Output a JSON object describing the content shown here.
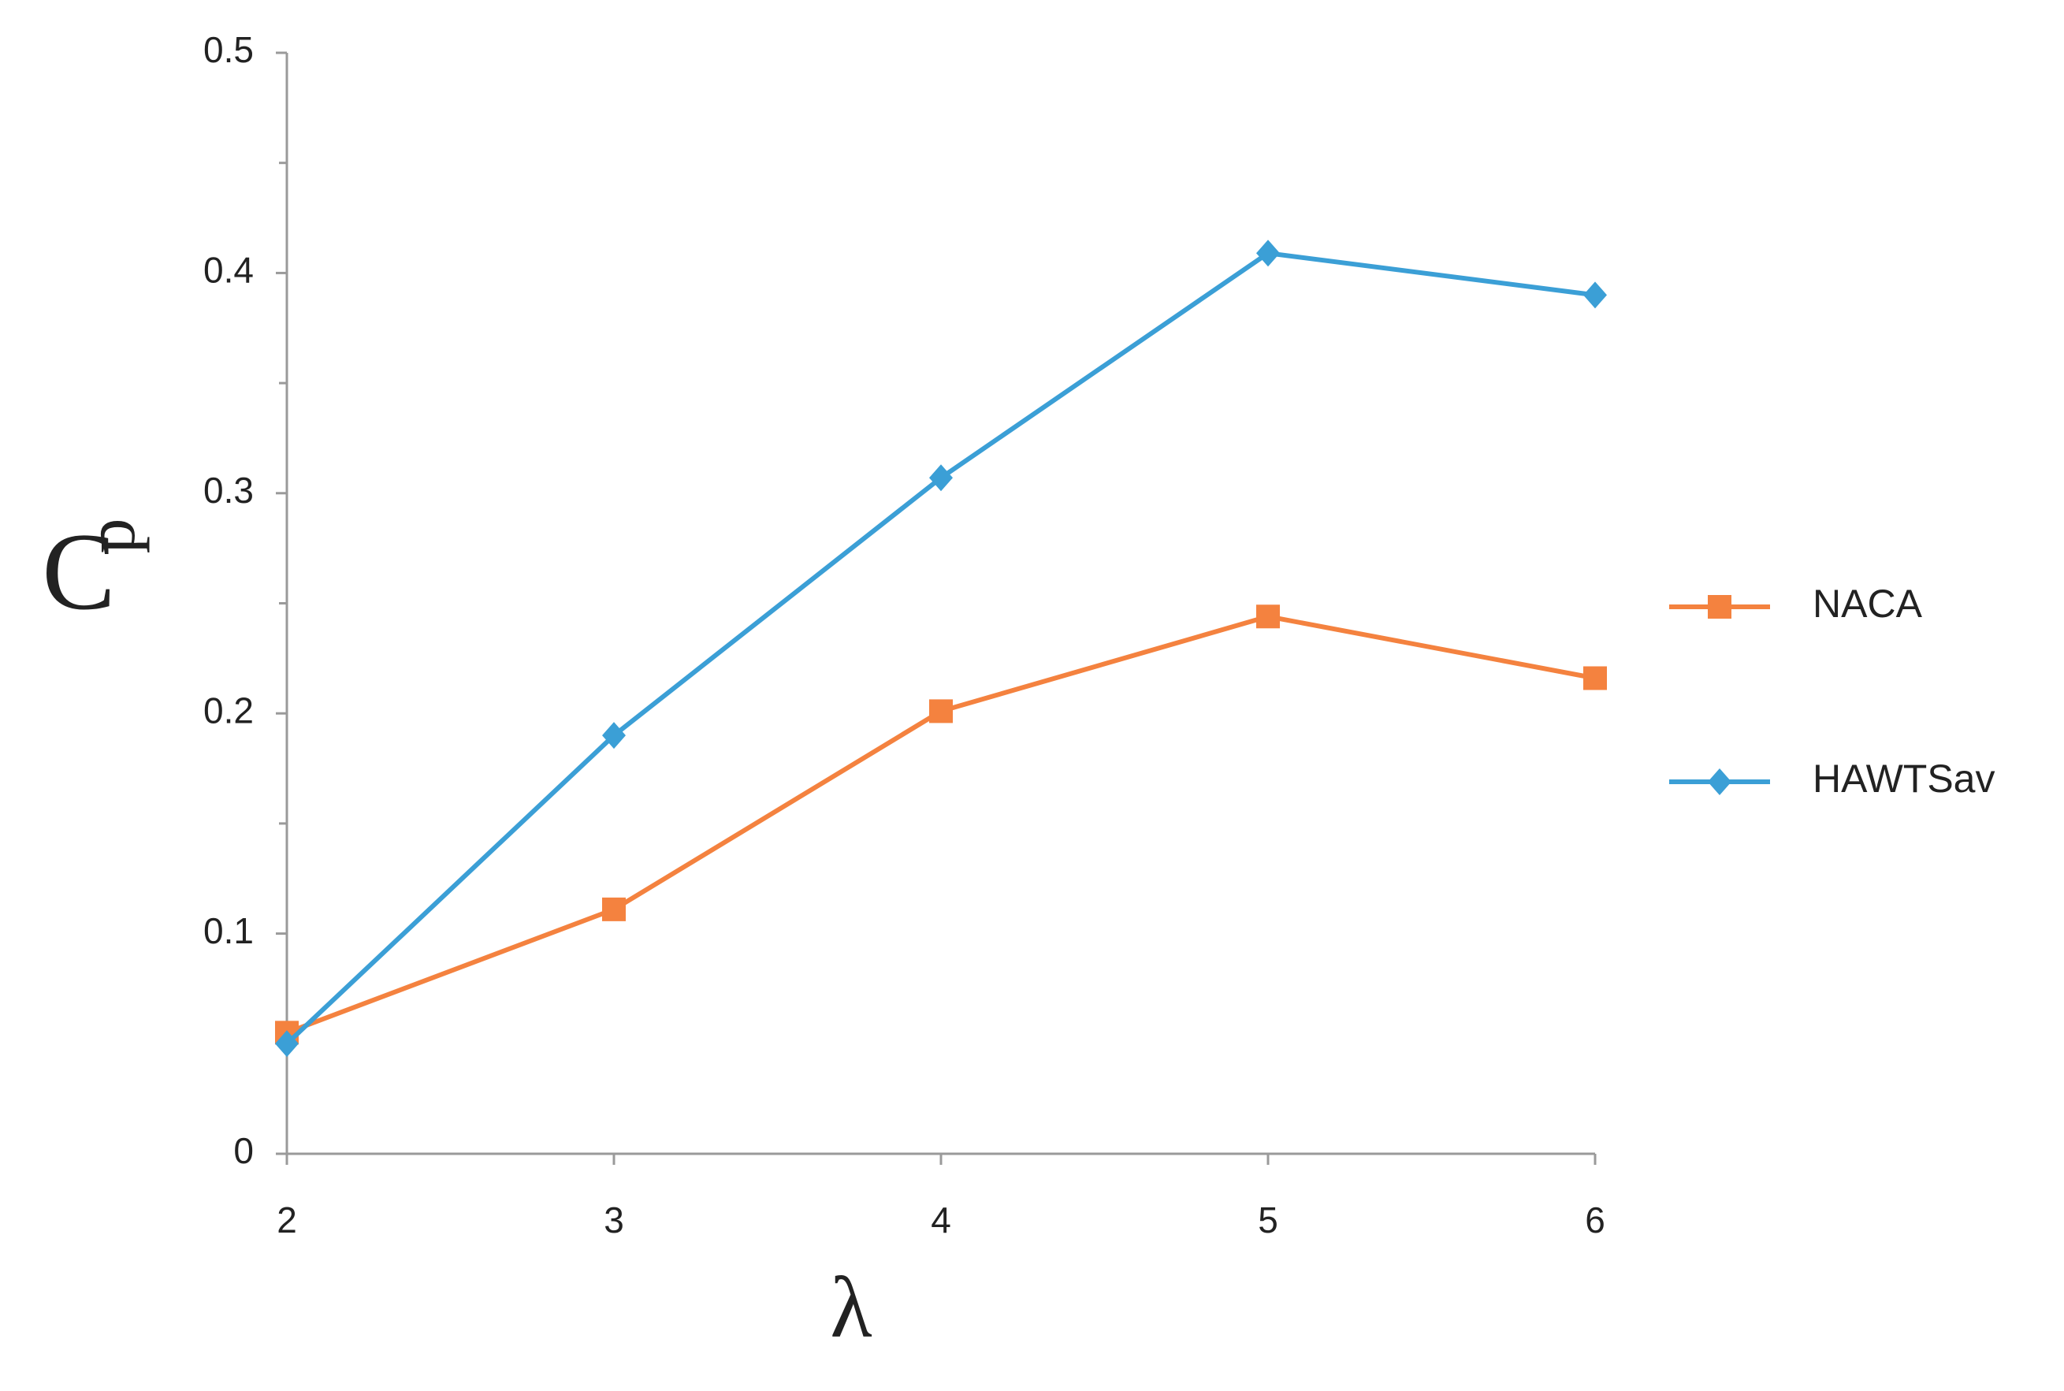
{
  "chart_data": {
    "type": "line",
    "xlabel": "λ",
    "ylabel": "C",
    "ylabel_subscript": "p",
    "x": [
      2,
      3,
      4,
      5,
      6
    ],
    "series": [
      {
        "name": "NACA",
        "color": "#f4823f",
        "marker": "square",
        "values": [
          0.055,
          0.111,
          0.201,
          0.244,
          0.216
        ]
      },
      {
        "name": "HAWTSav",
        "color": "#3b9fd6",
        "marker": "diamond",
        "values": [
          0.05,
          0.19,
          0.307,
          0.409,
          0.39
        ]
      }
    ],
    "xlim": [
      2,
      6
    ],
    "xticks": [
      2,
      3,
      4,
      5,
      6
    ],
    "ylim": [
      0,
      0.5
    ],
    "yticks": [
      0,
      0.1,
      0.2,
      0.3,
      0.4,
      0.5
    ],
    "yminorticks": [
      0.05,
      0.15,
      0.25,
      0.35,
      0.45
    ],
    "grid": false,
    "legend": "right"
  }
}
